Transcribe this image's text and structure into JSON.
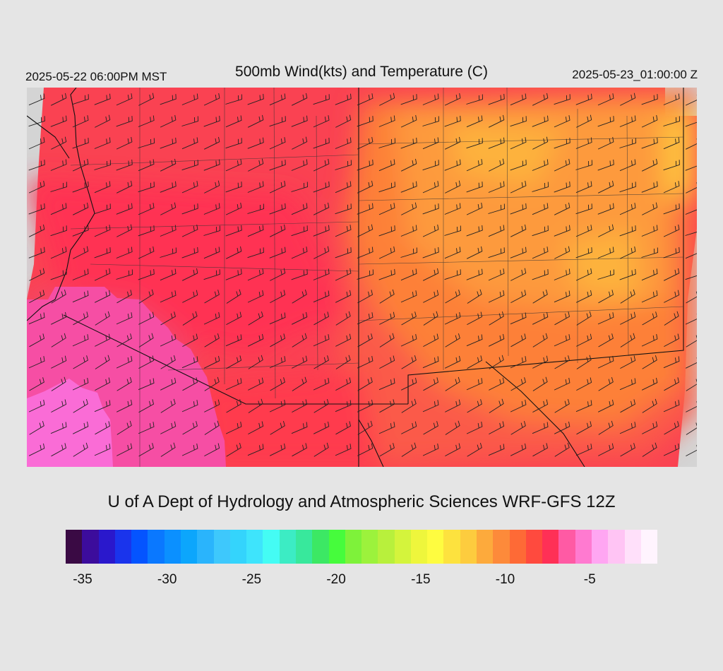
{
  "header": {
    "valid_local": "2025-05-22 06:00PM MST",
    "title": "500mb Wind(kts) and Temperature (C)",
    "valid_utc": "2025-05-23_01:00:00 Z"
  },
  "footer": {
    "credit": "U of A Dept of Hydrology and Atmospheric Sciences WRF-GFS 12Z"
  },
  "legend": {
    "colors": [
      "#3a0a44",
      "#3c0c9c",
      "#2a18cc",
      "#1a34ec",
      "#0454ff",
      "#0a78ff",
      "#0b90ff",
      "#0ca6fc",
      "#2ab4fc",
      "#3ec8fc",
      "#34d4fc",
      "#3ee4fc",
      "#44fcf4",
      "#3cecc4",
      "#38e89c",
      "#3ce864",
      "#46fc3c",
      "#7ef23a",
      "#9cf23c",
      "#b8f03c",
      "#d4f43c",
      "#eef63c",
      "#fefc40",
      "#fde23e",
      "#fdcc3e",
      "#fdaa3c",
      "#fd8a3a",
      "#fe6a36",
      "#ff4a3e",
      "#ff3056",
      "#ff5aa4",
      "#ff7ad0",
      "#ffa6f2",
      "#ffc4f4",
      "#ffe0fa",
      "#fff4fe"
    ],
    "tick_labels": [
      "-35",
      "-30",
      "-25",
      "-20",
      "-15",
      "-10",
      "-5"
    ],
    "tick_values": [
      -35,
      -30,
      -25,
      -20,
      -15,
      -10,
      -5
    ],
    "min": -36,
    "max": -1
  },
  "map": {
    "field": "500mb temperature",
    "units": "C",
    "overlay": "wind barbs (kts)",
    "background_color": "#fa4252"
  }
}
